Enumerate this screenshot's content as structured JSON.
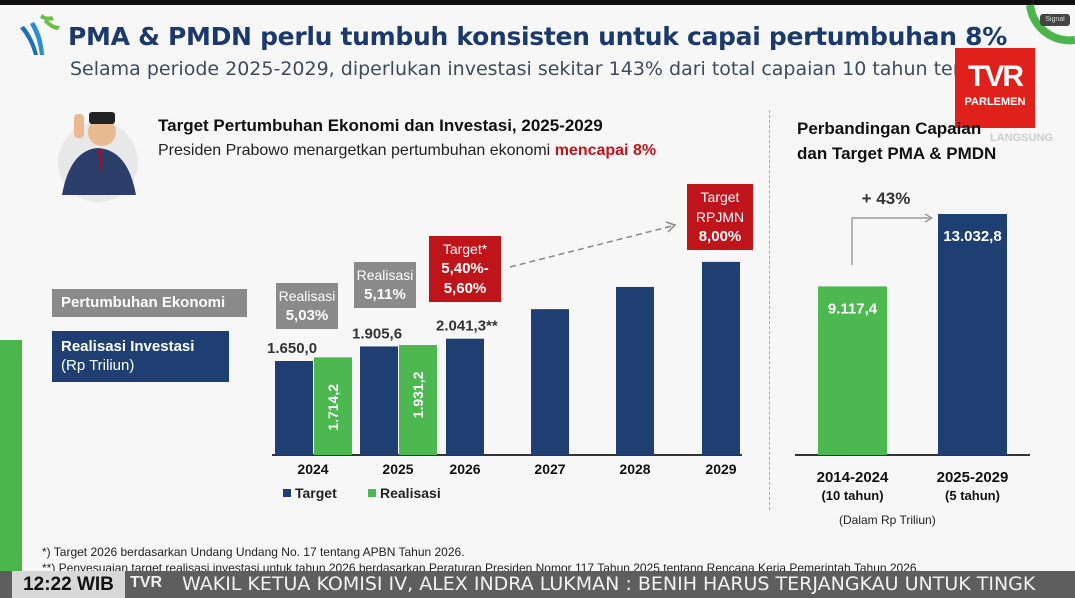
{
  "header": {
    "title": "PMA & PMDN perlu tumbuh konsisten untuk capai pertumbuhan 8%",
    "subtitle": "Selama periode 2025-2029, diperlukan investasi sekitar 143% dari total capaian 10 tahun ter"
  },
  "broadcaster": {
    "logo_text": "TVR",
    "logo_sub": "PARLEMEN",
    "overlay": "LANGSUNG",
    "badge": "Signal"
  },
  "left_panel": {
    "heading": "Target Pertumbuhan Ekonomi dan Investasi, 2025-2029",
    "subheading_prefix": "Presiden Prabowo menargetkan pertumbuhan ekonomi ",
    "subheading_highlight": "mencapai 8%",
    "label_growth": "Pertumbuhan Ekonomi",
    "label_investment": "Realisasi Investasi",
    "label_investment_unit": "(Rp Triliun)",
    "growth_boxes": [
      {
        "line1": "Realisasi",
        "line2": "5,03%"
      },
      {
        "line1": "Realisasi",
        "line2": "5,11%"
      },
      {
        "line1": "Target*",
        "line2": "5,40%-",
        "line3": "5,60%"
      },
      {
        "line1": "Target",
        "line2": "RPJMN",
        "line3": "8,00%"
      }
    ]
  },
  "right_panel": {
    "heading_line1": "Perbandingan Capaian",
    "heading_line2": "dan Target PMA & PMDN",
    "unit_note": "(Dalam Rp Triliun)"
  },
  "chart_data": [
    {
      "type": "bar",
      "categories": [
        "2024",
        "2025",
        "2026",
        "2027",
        "2028",
        "2029"
      ],
      "series": [
        {
          "name": "Target",
          "values": [
            1650.0,
            1905.6,
            2041.3,
            2560,
            2950,
            3390
          ],
          "labels": [
            "1.650,0",
            "1.905,6",
            "2.041,3**",
            "",
            "",
            ""
          ],
          "color": "#1f3f73"
        },
        {
          "name": "Realisasi",
          "values": [
            1714.2,
            1931.2,
            null,
            null,
            null,
            null
          ],
          "labels": [
            "1.714,2",
            "1.931,2",
            "",
            "",
            "",
            ""
          ],
          "color": "#4cb84f"
        }
      ],
      "legend": "bottom-left",
      "grid": false
    },
    {
      "type": "bar",
      "categories": [
        "2014-2024",
        "2025-2029"
      ],
      "category_sub": [
        "(10 tahun)",
        "(5 tahun)"
      ],
      "values": [
        9117.4,
        13032.8
      ],
      "labels": [
        "9.117,4",
        "13.032,8"
      ],
      "colors": [
        "#4cb84f",
        "#1f3f73"
      ],
      "annotation": "+ 43%"
    }
  ],
  "footnotes": [
    "*) Target 2026 berdasarkan Undang Undang No. 17 tentang APBN Tahun 2026.",
    "**) Penyesuaian target realisasi investasi untuk tahun 2026 berdasarkan Peraturan Presiden Nomor 117 Tahun 2025 tentang Rencana Kerja Pemerintah Tahun 2026."
  ],
  "ticker": {
    "time": "12:22 WIB",
    "logo": "TVR",
    "text": "WAKIL KETUA KOMISI IV, ALEX INDRA LUKMAN : BENIH HARUS TERJANGKAU UNTUK TINGK"
  }
}
